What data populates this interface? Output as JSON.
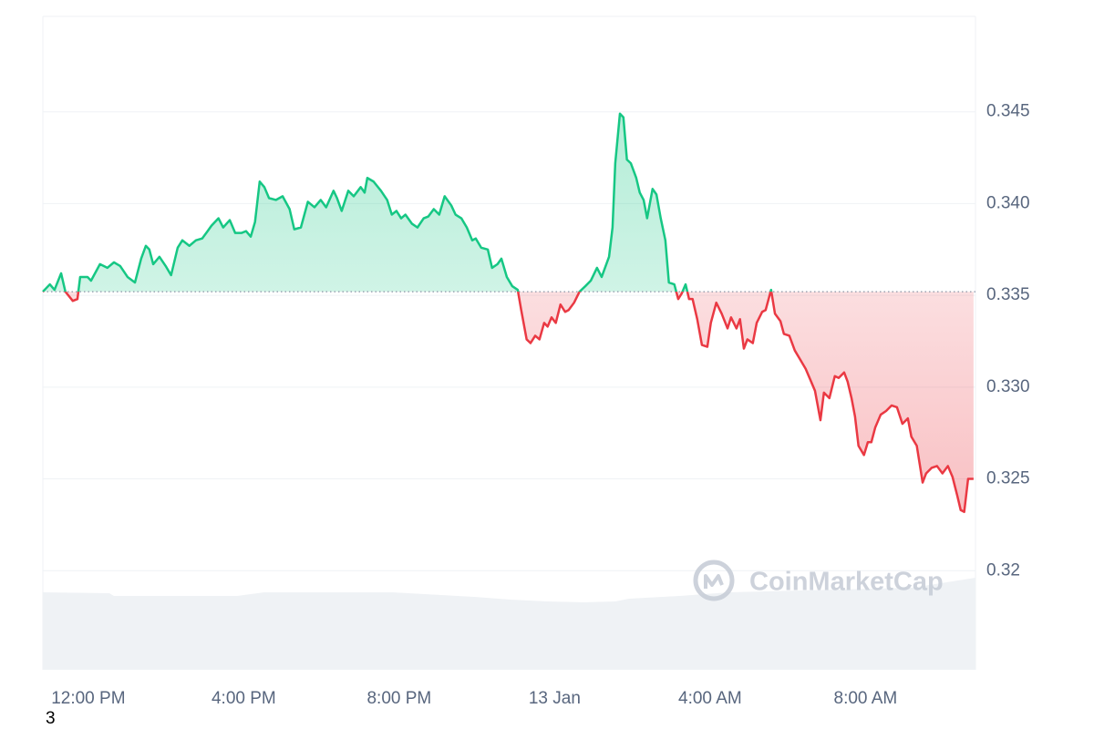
{
  "chart_data": {
    "type": "line",
    "x": [
      -1.17,
      -0.99,
      -0.87,
      -0.7,
      -0.59,
      -0.4,
      -0.28,
      -0.21,
      -0.02,
      0.07,
      0.3,
      0.49,
      0.66,
      0.82,
      1.01,
      1.2,
      1.36,
      1.48,
      1.57,
      1.67,
      1.83,
      1.99,
      2.13,
      2.3,
      2.42,
      2.6,
      2.77,
      2.93,
      3.07,
      3.17,
      3.35,
      3.47,
      3.64,
      3.78,
      3.94,
      4.06,
      4.18,
      4.29,
      4.41,
      4.53,
      4.65,
      4.83,
      5.0,
      5.18,
      5.3,
      5.47,
      5.65,
      5.82,
      5.98,
      6.12,
      6.31,
      6.4,
      6.52,
      6.69,
      6.83,
      7.01,
      7.11,
      7.18,
      7.34,
      7.53,
      7.69,
      7.81,
      7.93,
      8.05,
      8.16,
      8.33,
      8.47,
      8.63,
      8.75,
      8.89,
      9.03,
      9.17,
      9.34,
      9.45,
      9.6,
      9.74,
      9.88,
      9.97,
      10.11,
      10.28,
      10.39,
      10.53,
      10.63,
      10.77,
      10.91,
      11.05,
      11.14,
      11.28,
      11.38,
      11.5,
      11.61,
      11.73,
      11.82,
      11.92,
      12.03,
      12.15,
      12.27,
      12.36,
      12.5,
      12.64,
      12.79,
      12.93,
      13.09,
      13.21,
      13.4,
      13.49,
      13.56,
      13.68,
      13.77,
      13.86,
      13.96,
      14.1,
      14.19,
      14.29,
      14.38,
      14.52,
      14.62,
      14.73,
      14.85,
      14.94,
      15.08,
      15.18,
      15.27,
      15.37,
      15.46,
      15.55,
      15.67,
      15.79,
      15.93,
      16.02,
      16.16,
      16.3,
      16.45,
      16.54,
      16.68,
      16.77,
      16.87,
      16.96,
      17.1,
      17.2,
      17.34,
      17.43,
      17.57,
      17.67,
      17.81,
      17.9,
      18.04,
      18.18,
      18.32,
      18.46,
      18.6,
      18.7,
      18.84,
      18.93,
      19.07,
      19.21,
      19.31,
      19.45,
      19.54,
      19.64,
      19.73,
      19.82,
      19.96,
      20.06,
      20.15,
      20.25,
      20.39,
      20.53,
      20.67,
      20.81,
      20.95,
      21.09,
      21.18,
      21.32,
      21.47,
      21.56,
      21.7,
      21.84,
      21.98,
      22.12,
      22.24,
      22.36,
      22.45,
      22.54,
      22.64,
      22.78
    ],
    "values": [
      0.3352,
      0.3356,
      0.3353,
      0.3362,
      0.3352,
      0.3347,
      0.3348,
      0.336,
      0.336,
      0.3358,
      0.3367,
      0.3365,
      0.3368,
      0.3366,
      0.336,
      0.3357,
      0.337,
      0.3377,
      0.3375,
      0.3367,
      0.3371,
      0.3366,
      0.3361,
      0.3376,
      0.338,
      0.3377,
      0.338,
      0.3381,
      0.3385,
      0.3388,
      0.3392,
      0.3387,
      0.3391,
      0.3384,
      0.3384,
      0.3385,
      0.3382,
      0.339,
      0.3412,
      0.3409,
      0.3403,
      0.3402,
      0.3404,
      0.3397,
      0.3386,
      0.3387,
      0.3401,
      0.3398,
      0.3402,
      0.3398,
      0.3407,
      0.3403,
      0.3396,
      0.3407,
      0.3404,
      0.3409,
      0.3406,
      0.3414,
      0.3412,
      0.3407,
      0.3402,
      0.3394,
      0.3396,
      0.3392,
      0.3394,
      0.3389,
      0.3387,
      0.3392,
      0.3393,
      0.3397,
      0.3394,
      0.3404,
      0.3399,
      0.3394,
      0.3392,
      0.3387,
      0.338,
      0.3381,
      0.3376,
      0.3375,
      0.3365,
      0.3367,
      0.337,
      0.336,
      0.3355,
      0.3353,
      0.3342,
      0.3326,
      0.3324,
      0.3328,
      0.3326,
      0.3335,
      0.3333,
      0.3338,
      0.3335,
      0.3345,
      0.3341,
      0.3342,
      0.3346,
      0.3352,
      0.3355,
      0.3358,
      0.3365,
      0.336,
      0.3371,
      0.3387,
      0.3422,
      0.3449,
      0.3447,
      0.3424,
      0.3422,
      0.3414,
      0.3406,
      0.3402,
      0.3392,
      0.3408,
      0.3405,
      0.3392,
      0.338,
      0.3357,
      0.3356,
      0.3348,
      0.3351,
      0.3356,
      0.3348,
      0.3348,
      0.3337,
      0.3323,
      0.3322,
      0.3335,
      0.3346,
      0.334,
      0.3332,
      0.3338,
      0.3332,
      0.3337,
      0.3321,
      0.3326,
      0.3324,
      0.3335,
      0.3341,
      0.3342,
      0.3353,
      0.334,
      0.3336,
      0.3329,
      0.3328,
      0.332,
      0.3315,
      0.331,
      0.3303,
      0.3298,
      0.3282,
      0.3297,
      0.3294,
      0.3306,
      0.3305,
      0.3308,
      0.3303,
      0.3294,
      0.3284,
      0.3268,
      0.3263,
      0.327,
      0.327,
      0.3278,
      0.3285,
      0.3287,
      0.329,
      0.3289,
      0.328,
      0.3283,
      0.3273,
      0.3268,
      0.3248,
      0.3253,
      0.3256,
      0.3257,
      0.3253,
      0.3257,
      0.3251,
      0.3241,
      0.3233,
      0.3232,
      0.325,
      0.325
    ],
    "baseline": 0.3352,
    "up_color": "#16c784",
    "down_color": "#ea3943",
    "xlim": [
      -1.17,
      22.83
    ],
    "xticks": [
      {
        "value": 0,
        "label": "12:00 PM"
      },
      {
        "value": 4,
        "label": "4:00 PM"
      },
      {
        "value": 8,
        "label": "8:00 PM"
      },
      {
        "value": 12,
        "label": "13 Jan"
      },
      {
        "value": 16,
        "label": "4:00 AM"
      },
      {
        "value": 20,
        "label": "8:00 AM"
      }
    ],
    "ylim": [
      0.3146,
      0.3502
    ],
    "yticks": [
      0.32,
      0.325,
      {
        "value": 0.33,
        "label": "0.330"
      },
      0.335,
      {
        "value": 0.34,
        "label": "0.340"
      },
      0.345
    ],
    "grid": true,
    "watermark": "CoinMarketCap"
  },
  "footer": "3"
}
